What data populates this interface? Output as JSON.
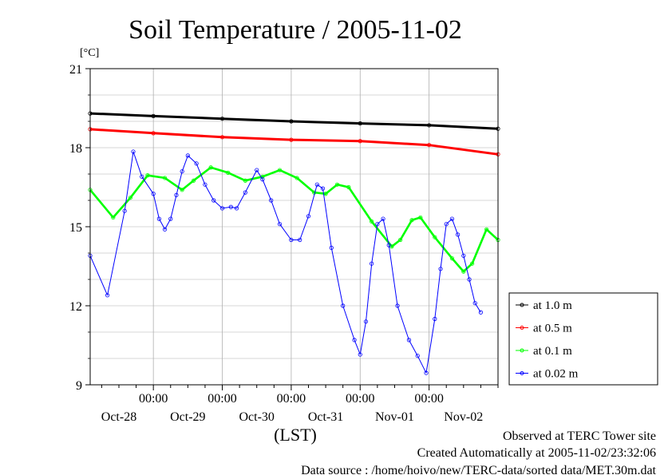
{
  "chart_data": {
    "type": "line",
    "title": "Soil Temperature / 2005-11-02",
    "ylabel": "[°C]",
    "xlabel": "(LST)",
    "ylim": [
      9,
      21
    ],
    "yticks": [
      9,
      12,
      15,
      18,
      21
    ],
    "x_unit": "hours",
    "x_range": [
      -118,
      24
    ],
    "x_time_ticks": [
      {
        "x": -96,
        "label": "00:00"
      },
      {
        "x": -72,
        "label": "00:00"
      },
      {
        "x": -48,
        "label": "00:00"
      },
      {
        "x": -24,
        "label": "00:00"
      },
      {
        "x": 0,
        "label": "00:00"
      }
    ],
    "x_date_labels": [
      {
        "x": -108,
        "label": "Oct-28"
      },
      {
        "x": -84,
        "label": "Oct-29"
      },
      {
        "x": -60,
        "label": "Oct-30"
      },
      {
        "x": -36,
        "label": "Oct-31"
      },
      {
        "x": -12,
        "label": "Nov-01"
      },
      {
        "x": 12,
        "label": "Nov-02"
      }
    ],
    "grid": true,
    "legend_position": "right",
    "series": [
      {
        "name": "at 1.0 m",
        "color": "#000000",
        "points": [
          [
            -118,
            19.3
          ],
          [
            -96,
            19.2
          ],
          [
            -72,
            19.1
          ],
          [
            -48,
            19.0
          ],
          [
            -24,
            18.92
          ],
          [
            0,
            18.85
          ],
          [
            24,
            18.72
          ]
        ]
      },
      {
        "name": "at 0.5 m",
        "color": "#ff0000",
        "points": [
          [
            -118,
            18.7
          ],
          [
            -96,
            18.55
          ],
          [
            -72,
            18.4
          ],
          [
            -48,
            18.3
          ],
          [
            -24,
            18.25
          ],
          [
            0,
            18.1
          ],
          [
            24,
            17.75
          ]
        ]
      },
      {
        "name": "at 0.1 m",
        "color": "#00ff00",
        "points": [
          [
            -118,
            16.4
          ],
          [
            -110,
            15.35
          ],
          [
            -104,
            16.1
          ],
          [
            -98,
            16.95
          ],
          [
            -92,
            16.85
          ],
          [
            -86,
            16.4
          ],
          [
            -82,
            16.75
          ],
          [
            -76,
            17.25
          ],
          [
            -70,
            17.05
          ],
          [
            -64,
            16.75
          ],
          [
            -58,
            16.9
          ],
          [
            -52,
            17.15
          ],
          [
            -46,
            16.85
          ],
          [
            -40,
            16.3
          ],
          [
            -36,
            16.25
          ],
          [
            -32,
            16.6
          ],
          [
            -28,
            16.5
          ],
          [
            -20,
            15.2
          ],
          [
            -13,
            14.25
          ],
          [
            -10,
            14.5
          ],
          [
            -6,
            15.25
          ],
          [
            -3,
            15.35
          ],
          [
            2,
            14.6
          ],
          [
            8,
            13.8
          ],
          [
            12,
            13.3
          ],
          [
            15,
            13.6
          ],
          [
            20,
            14.9
          ],
          [
            24,
            14.5
          ]
        ]
      },
      {
        "name": "at 0.02 m",
        "color": "#0000ff",
        "points": [
          [
            -118,
            13.9
          ],
          [
            -112,
            12.4
          ],
          [
            -106,
            15.6
          ],
          [
            -103,
            17.85
          ],
          [
            -100,
            16.9
          ],
          [
            -96,
            16.25
          ],
          [
            -94,
            15.3
          ],
          [
            -92,
            14.9
          ],
          [
            -90,
            15.3
          ],
          [
            -88,
            16.2
          ],
          [
            -86,
            17.1
          ],
          [
            -84,
            17.7
          ],
          [
            -81,
            17.4
          ],
          [
            -78,
            16.6
          ],
          [
            -75,
            16.0
          ],
          [
            -72,
            15.7
          ],
          [
            -69,
            15.75
          ],
          [
            -67,
            15.7
          ],
          [
            -64,
            16.3
          ],
          [
            -60,
            17.15
          ],
          [
            -58,
            16.8
          ],
          [
            -55,
            16.0
          ],
          [
            -52,
            15.1
          ],
          [
            -48,
            14.5
          ],
          [
            -45,
            14.5
          ],
          [
            -42,
            15.4
          ],
          [
            -39,
            16.6
          ],
          [
            -37,
            16.45
          ],
          [
            -34,
            14.2
          ],
          [
            -30,
            12.0
          ],
          [
            -26,
            10.7
          ],
          [
            -24,
            10.15
          ],
          [
            -22,
            11.4
          ],
          [
            -20,
            13.6
          ],
          [
            -18,
            15.1
          ],
          [
            -16,
            15.3
          ],
          [
            -14,
            14.3
          ],
          [
            -11,
            12.0
          ],
          [
            -7,
            10.7
          ],
          [
            -4,
            10.1
          ],
          [
            -1,
            9.45
          ],
          [
            2,
            11.5
          ],
          [
            4,
            13.4
          ],
          [
            6,
            15.1
          ],
          [
            8,
            15.3
          ],
          [
            10,
            14.7
          ],
          [
            12,
            13.9
          ],
          [
            14,
            13.0
          ],
          [
            16,
            12.1
          ],
          [
            18,
            11.75
          ]
        ]
      }
    ]
  },
  "footer": {
    "line1": "Observed at TERC Tower site",
    "line2": "Created Automatically at 2005-11-02/23:32:06",
    "line3": "Data source : /home/hoivo/new/TERC-data/sorted  data/MET.30m.dat"
  }
}
